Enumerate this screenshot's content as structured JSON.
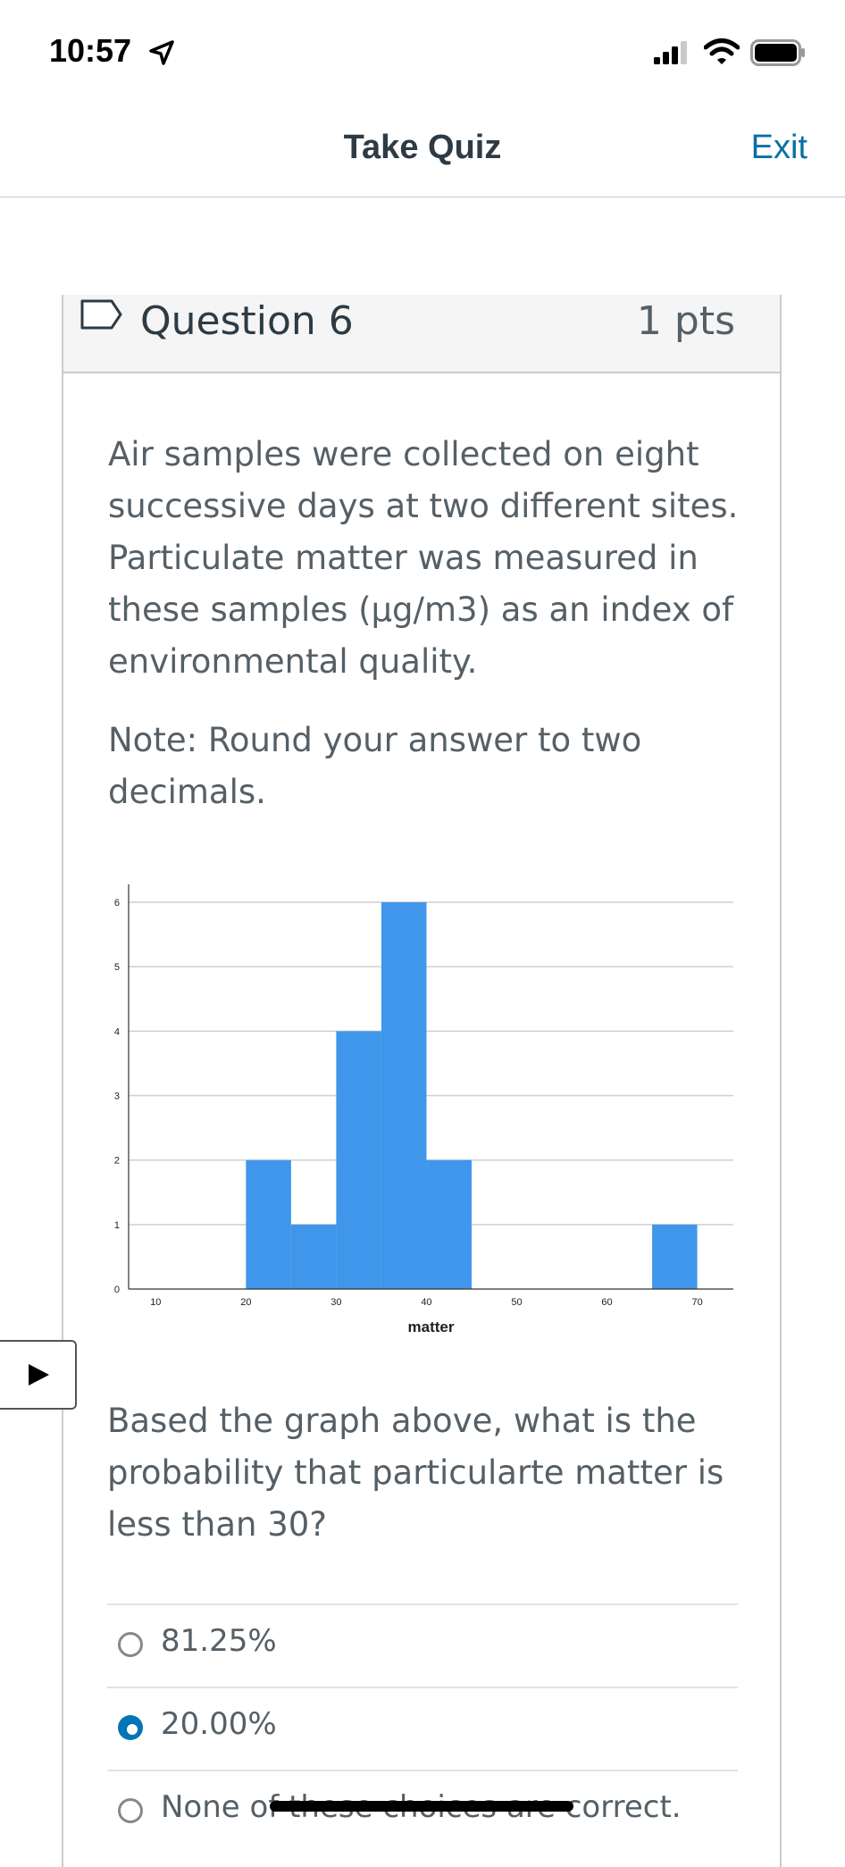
{
  "status_bar": {
    "time": "10:57"
  },
  "nav": {
    "title": "Take Quiz",
    "exit_label": "Exit"
  },
  "question": {
    "title": "Question 6",
    "points": "1 pts",
    "text": "Air samples were collected on eight successive days at two different sites. Particulate matter was measured in these samples (µg/m3) as an index of environmental quality.",
    "note": "Note: Round your answer to two decimals.",
    "prompt": "Based the graph above, what is the probability that particularte matter is less than 30?"
  },
  "answers": [
    {
      "label": "81.25%",
      "selected": false
    },
    {
      "label": "20.00%",
      "selected": true
    },
    {
      "label": "None of these choices are correct.",
      "selected": false
    }
  ],
  "chart_data": {
    "type": "bar",
    "title": "",
    "xlabel": "matter",
    "ylabel": "",
    "bins": [
      {
        "x0": 20,
        "x1": 25,
        "count": 2
      },
      {
        "x0": 25,
        "x1": 30,
        "count": 1
      },
      {
        "x0": 30,
        "x1": 35,
        "count": 4
      },
      {
        "x0": 35,
        "x1": 40,
        "count": 6
      },
      {
        "x0": 40,
        "x1": 45,
        "count": 2
      },
      {
        "x0": 65,
        "x1": 70,
        "count": 1
      }
    ],
    "xticks": [
      10,
      20,
      30,
      40,
      50,
      60,
      70
    ],
    "yticks": [
      0,
      1,
      2,
      3,
      4,
      5,
      6
    ],
    "xlim": [
      7,
      74
    ],
    "ylim": [
      0,
      6
    ],
    "grid": true,
    "bar_color": "#4096ea"
  }
}
